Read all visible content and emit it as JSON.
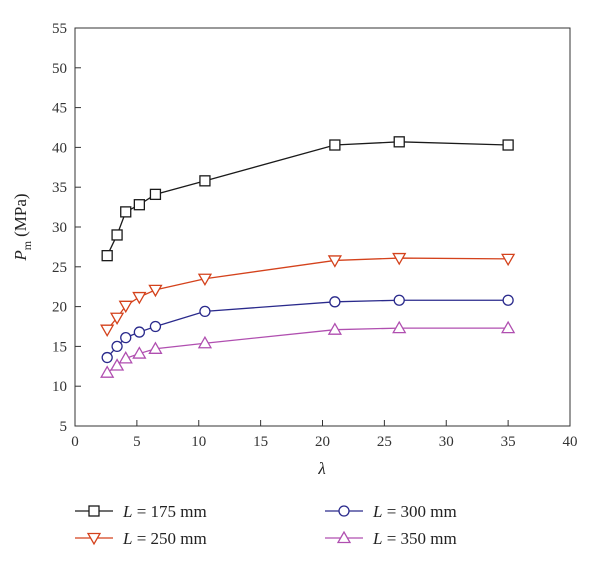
{
  "chart_data": {
    "type": "line",
    "xlabel": "λ",
    "ylabel_main": "P",
    "ylabel_sub": "m",
    "ylabel_unit": "(MPa)",
    "xlim": [
      0,
      40
    ],
    "ylim": [
      5,
      55
    ],
    "xticks": [
      0,
      5,
      10,
      15,
      20,
      25,
      30,
      35,
      40
    ],
    "yticks": [
      5,
      10,
      15,
      20,
      25,
      30,
      35,
      40,
      45,
      50,
      55
    ],
    "grid": false,
    "legend_position": "bottom",
    "x": [
      2.6,
      3.4,
      4.1,
      5.2,
      6.5,
      10.5,
      21.0,
      26.2,
      35.0
    ],
    "series": [
      {
        "name": "L = 175 mm",
        "name_var": "L",
        "name_rest": " = 175 mm",
        "color": "#1a1a1a",
        "marker": "square",
        "values": [
          26.4,
          29.0,
          31.9,
          32.8,
          34.1,
          35.8,
          40.3,
          40.7,
          40.3
        ]
      },
      {
        "name": "L = 250 mm",
        "name_var": "L",
        "name_rest": " = 250 mm",
        "color": "#d4421c",
        "marker": "triangle-down",
        "values": [
          17.1,
          18.6,
          20.1,
          21.2,
          22.1,
          23.5,
          25.8,
          26.1,
          26.0
        ]
      },
      {
        "name": "L = 300 mm",
        "name_var": "L",
        "name_rest": " = 300 mm",
        "color": "#2a2a8c",
        "marker": "circle",
        "values": [
          13.6,
          15.0,
          16.1,
          16.8,
          17.5,
          19.4,
          20.6,
          20.8,
          20.8
        ]
      },
      {
        "name": "L = 350 mm",
        "name_var": "L",
        "name_rest": " = 350 mm",
        "color": "#b04fb0",
        "marker": "triangle-up",
        "values": [
          11.7,
          12.6,
          13.5,
          14.1,
          14.7,
          15.4,
          17.1,
          17.3,
          17.3
        ]
      }
    ]
  }
}
